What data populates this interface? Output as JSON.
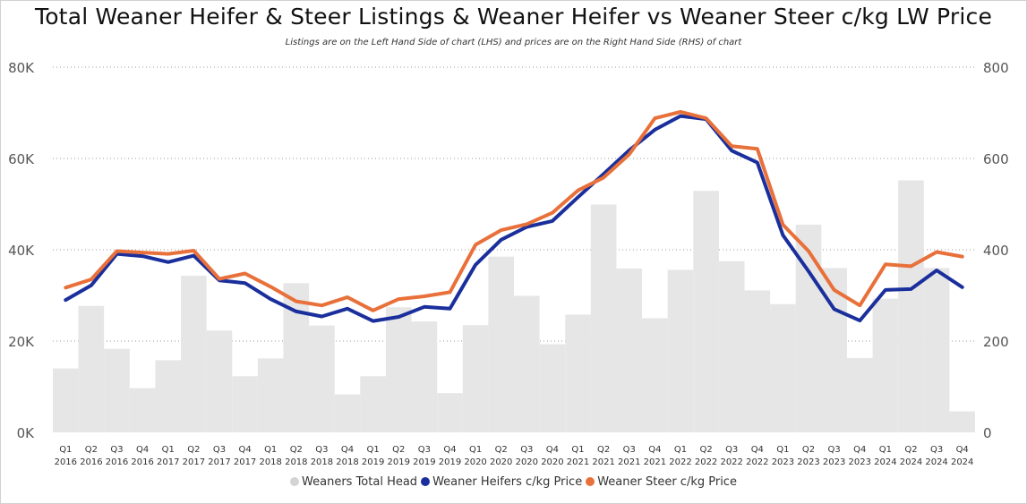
{
  "chart_data": {
    "type": "bar+line",
    "title": "Total Weaner Heifer & Steer Listings & Weaner Heifer vs Weaner Steer c/kg LW Price",
    "subtitle": "Listings are on the Left Hand Side of chart (LHS) and prices are on the Right Hand Side (RHS) of chart",
    "categories": [
      [
        "Q1",
        "2016"
      ],
      [
        "Q2",
        "2016"
      ],
      [
        "Q3",
        "2016"
      ],
      [
        "Q4",
        "2016"
      ],
      [
        "Q1",
        "2017"
      ],
      [
        "Q2",
        "2017"
      ],
      [
        "Q3",
        "2017"
      ],
      [
        "Q4",
        "2017"
      ],
      [
        "Q1",
        "2018"
      ],
      [
        "Q2",
        "2018"
      ],
      [
        "Q3",
        "2018"
      ],
      [
        "Q4",
        "2018"
      ],
      [
        "Q1",
        "2019"
      ],
      [
        "Q2",
        "2019"
      ],
      [
        "Q3",
        "2019"
      ],
      [
        "Q4",
        "2019"
      ],
      [
        "Q1",
        "2020"
      ],
      [
        "Q2",
        "2020"
      ],
      [
        "Q3",
        "2020"
      ],
      [
        "Q4",
        "2020"
      ],
      [
        "Q1",
        "2021"
      ],
      [
        "Q2",
        "2021"
      ],
      [
        "Q3",
        "2021"
      ],
      [
        "Q4",
        "2021"
      ],
      [
        "Q1",
        "2022"
      ],
      [
        "Q2",
        "2022"
      ],
      [
        "Q3",
        "2022"
      ],
      [
        "Q4",
        "2022"
      ],
      [
        "Q1",
        "2023"
      ],
      [
        "Q2",
        "2023"
      ],
      [
        "Q3",
        "2023"
      ],
      [
        "Q4",
        "2023"
      ],
      [
        "Q1",
        "2024"
      ],
      [
        "Q2",
        "2024"
      ],
      [
        "Q3",
        "2024"
      ],
      [
        "Q4",
        "2024"
      ]
    ],
    "y_left": {
      "min": 0,
      "max": 80000,
      "ticks": [
        "0K",
        "20K",
        "40K",
        "60K",
        "80K"
      ],
      "tick_values": [
        0,
        20000,
        40000,
        60000,
        80000
      ]
    },
    "y_right": {
      "min": 0,
      "max": 800,
      "ticks": [
        "0",
        "200",
        "400",
        "600",
        "800"
      ],
      "tick_values": [
        0,
        200,
        400,
        600,
        800
      ]
    },
    "grid": true,
    "legend_position": "bottom",
    "series": [
      {
        "name": "Weaners Total Head",
        "kind": "bar",
        "axis": "left",
        "color": "#e6e6e6",
        "values": [
          14000,
          27700,
          18300,
          9700,
          15800,
          34300,
          22300,
          12300,
          16200,
          32700,
          23400,
          8300,
          12300,
          27400,
          24300,
          8600,
          23500,
          38500,
          29900,
          19300,
          25800,
          49900,
          35900,
          25000,
          35600,
          52900,
          37500,
          31100,
          28100,
          45500,
          36000,
          16300,
          29300,
          55200,
          36000,
          4600
        ]
      },
      {
        "name": "Weaner Heifers c/kg Price",
        "kind": "line",
        "axis": "right",
        "color": "#1a2f9c",
        "values": [
          290,
          322,
          391,
          386,
          373,
          387,
          333,
          327,
          292,
          265,
          254,
          271,
          244,
          253,
          275,
          271,
          367,
          422,
          450,
          463,
          515,
          566,
          618,
          663,
          693,
          686,
          617,
          591,
          432,
          353,
          270,
          245,
          312,
          314,
          355,
          318
        ]
      },
      {
        "name": "Weaner Steer c/kg Price",
        "kind": "line",
        "axis": "right",
        "color": "#e8703a",
        "values": [
          317,
          335,
          397,
          394,
          391,
          398,
          336,
          348,
          319,
          287,
          278,
          296,
          267,
          292,
          298,
          307,
          411,
          443,
          456,
          481,
          530,
          558,
          609,
          688,
          702,
          688,
          627,
          621,
          455,
          397,
          312,
          278,
          368,
          364,
          395,
          385
        ]
      }
    ]
  }
}
